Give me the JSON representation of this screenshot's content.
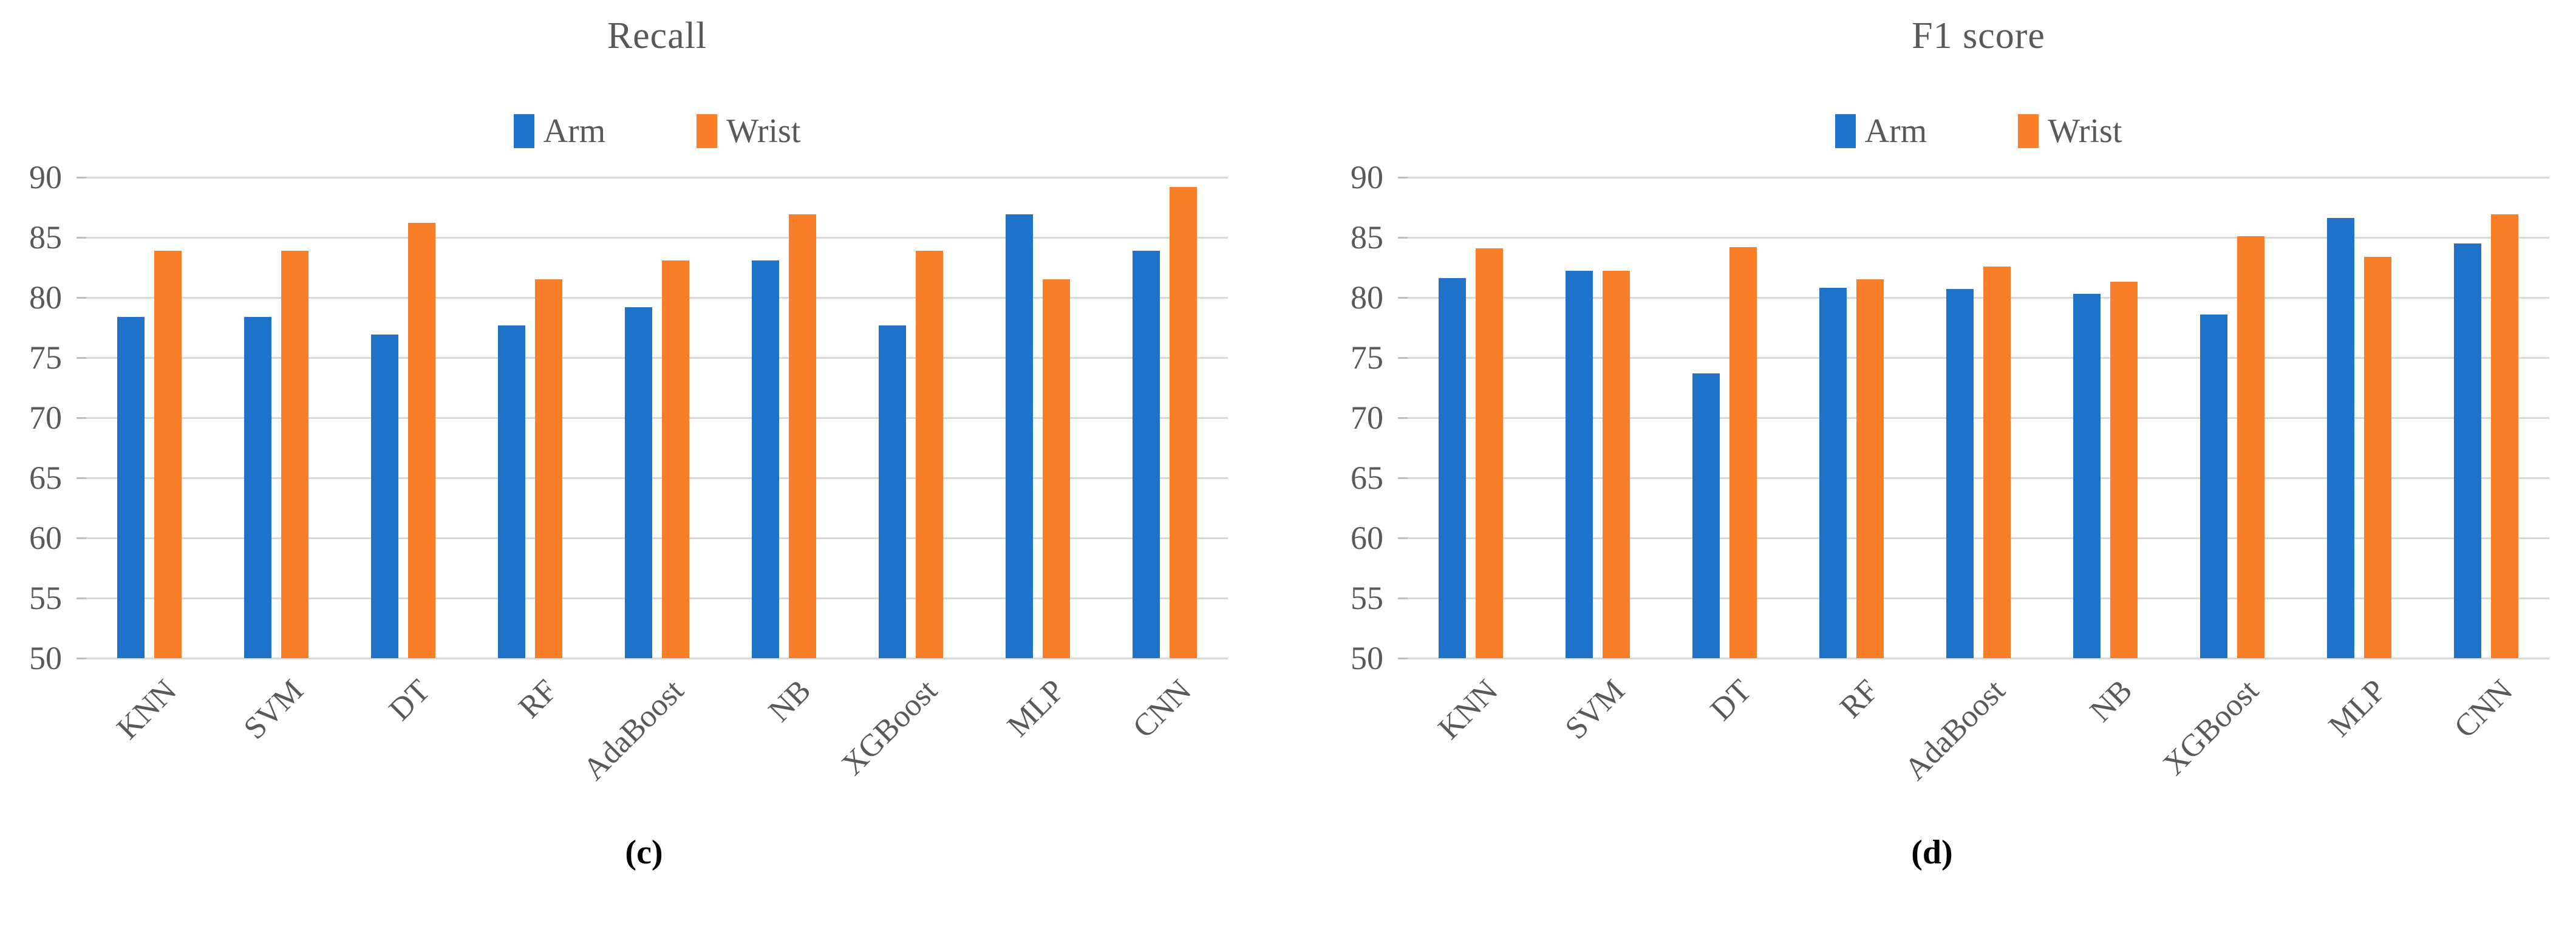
{
  "colors": {
    "arm_blue": "#1E73C8",
    "wrist_orange": "#F87F27",
    "gridline": "#D9D9D9",
    "axis_text": "#595959",
    "caption_text": "#000000",
    "background": "#FFFFFF"
  },
  "chart_data": [
    {
      "type": "bar",
      "title": "Recall",
      "caption": "(c)",
      "categories": [
        "KNN",
        "SVM",
        "DT",
        "RF",
        "AdaBoost",
        "NB",
        "XGBoost",
        "MLP",
        "CNN"
      ],
      "series": [
        {
          "name": "Arm",
          "color_key": "arm_blue",
          "values": [
            78.4,
            78.4,
            76.9,
            77.7,
            79.2,
            83.1,
            77.7,
            86.9,
            83.9
          ]
        },
        {
          "name": "Wrist",
          "color_key": "wrist_orange",
          "values": [
            83.9,
            83.9,
            86.2,
            81.5,
            83.1,
            86.9,
            83.9,
            81.5,
            89.2
          ]
        }
      ],
      "xlabel": "",
      "ylabel": "",
      "ylim": [
        50,
        90
      ],
      "yticks": [
        50,
        55,
        60,
        65,
        70,
        75,
        80,
        85,
        90
      ],
      "grid": true,
      "legend_position": "top"
    },
    {
      "type": "bar",
      "title": "F1 score",
      "caption": "(d)",
      "categories": [
        "KNN",
        "SVM",
        "DT",
        "RF",
        "AdaBoost",
        "NB",
        "XGBoost",
        "MLP",
        "CNN"
      ],
      "series": [
        {
          "name": "Arm",
          "color_key": "arm_blue",
          "values": [
            81.6,
            82.2,
            73.7,
            80.8,
            80.7,
            80.3,
            78.6,
            86.6,
            84.5
          ]
        },
        {
          "name": "Wrist",
          "color_key": "wrist_orange",
          "values": [
            84.1,
            82.2,
            84.2,
            81.5,
            82.6,
            81.3,
            85.1,
            83.4,
            86.9
          ]
        }
      ],
      "xlabel": "",
      "ylabel": "",
      "ylim": [
        50,
        90
      ],
      "yticks": [
        50,
        55,
        60,
        65,
        70,
        75,
        80,
        85,
        90
      ],
      "grid": true,
      "legend_position": "top"
    }
  ]
}
